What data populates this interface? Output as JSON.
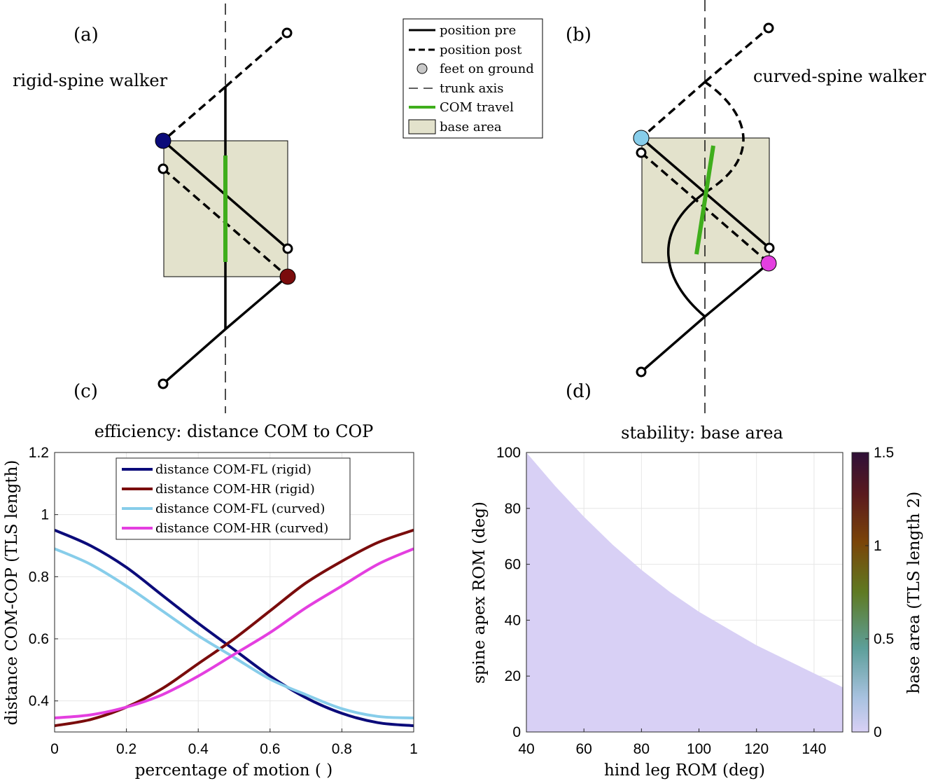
{
  "figure": {
    "panel_labels": [
      "(a)",
      "(b)",
      "(c)",
      "(d)"
    ],
    "walker_a_title": "rigid-spine walker",
    "walker_b_title": "curved-spine walker",
    "legend": [
      {
        "name": "position pre",
        "style": "solid"
      },
      {
        "name": "position post",
        "style": "dashed"
      },
      {
        "name": "feet on ground",
        "style": "marker"
      },
      {
        "name": "trunk axis",
        "style": "thin-dashed"
      },
      {
        "name": "COM travel",
        "style": "green"
      },
      {
        "name": "base area",
        "style": "patch"
      }
    ]
  },
  "colors": {
    "rigid_fl": "#0b0b7a",
    "rigid_hr": "#7a0c0c",
    "curved_fl": "#87cdea",
    "curved_hr": "#e43fe0",
    "com": "#3fae1c",
    "base_area": "#e3e2cc"
  },
  "chart_data": [
    {
      "type": "line",
      "title": "efficiency: distance COM to COP",
      "xlabel": "percentage of motion ( )",
      "ylabel": "distance COM-COP (TLS length)",
      "xlim": [
        0,
        1
      ],
      "ylim": [
        0.3,
        1.2
      ],
      "xticks": [
        "0",
        "0.2",
        "0.4",
        "0.6",
        "0.8",
        "1"
      ],
      "yticks": [
        "0.4",
        "0.6",
        "0.8",
        "1",
        "1.2"
      ],
      "grid": true,
      "legend_position": "top-right",
      "x": [
        0,
        0.1,
        0.2,
        0.3,
        0.4,
        0.5,
        0.6,
        0.7,
        0.8,
        0.9,
        1.0
      ],
      "series": [
        {
          "name": "distance COM-FL (rigid)",
          "color": "#0b0b7a",
          "values": [
            0.95,
            0.9,
            0.83,
            0.74,
            0.65,
            0.565,
            0.48,
            0.41,
            0.36,
            0.33,
            0.32
          ]
        },
        {
          "name": "distance COM-HR (rigid)",
          "color": "#7a0c0c",
          "values": [
            0.32,
            0.34,
            0.38,
            0.44,
            0.52,
            0.6,
            0.69,
            0.78,
            0.85,
            0.91,
            0.95
          ]
        },
        {
          "name": "distance COM-FL (curved)",
          "color": "#87cdea",
          "values": [
            0.89,
            0.84,
            0.77,
            0.69,
            0.61,
            0.54,
            0.47,
            0.42,
            0.375,
            0.35,
            0.345
          ]
        },
        {
          "name": "distance COM-HR (curved)",
          "color": "#e43fe0",
          "values": [
            0.345,
            0.355,
            0.38,
            0.42,
            0.48,
            0.55,
            0.62,
            0.7,
            0.77,
            0.84,
            0.89
          ]
        }
      ]
    },
    {
      "type": "heatmap",
      "title": "stability: base area",
      "xlabel": "hind leg ROM (deg)",
      "ylabel": "spine apex ROM (deg)",
      "xlim": [
        40,
        150
      ],
      "ylim": [
        0,
        100
      ],
      "xticks": [
        "40",
        "60",
        "80",
        "100",
        "120",
        "140"
      ],
      "yticks": [
        "0",
        "20",
        "40",
        "60",
        "80",
        "100"
      ],
      "colorbar": {
        "label": "base area (TLS length 2)",
        "range": [
          0,
          1.5
        ],
        "ticks": [
          "0",
          "0.5",
          "1",
          "1.5"
        ]
      },
      "boundary": {
        "hind_leg_ROM": [
          40,
          50,
          60,
          70,
          80,
          90,
          100,
          110,
          120,
          130,
          140,
          150
        ],
        "spine_apex_ROM_max": [
          100,
          88,
          77,
          67,
          58,
          50,
          43,
          37,
          31,
          26,
          21,
          16
        ]
      }
    }
  ]
}
